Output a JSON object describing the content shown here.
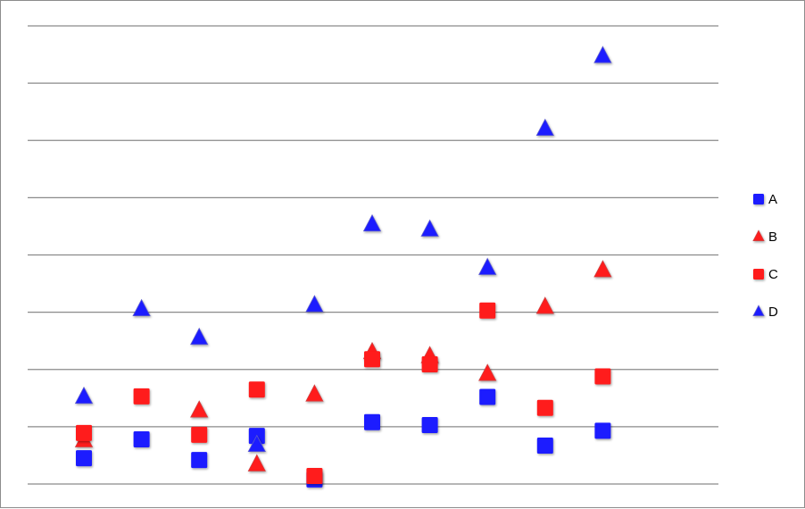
{
  "chart_data": {
    "type": "scatter",
    "title": "",
    "xlabel": "",
    "ylabel": "",
    "x": [
      1,
      2,
      3,
      4,
      5,
      6,
      7,
      8,
      9,
      10
    ],
    "ylim": [
      0,
      8
    ],
    "grid": true,
    "legend_position": "right",
    "series": [
      {
        "name": "A",
        "marker": "square",
        "color": "#1a1aff",
        "values": [
          0.45,
          0.78,
          0.42,
          0.84,
          0.08,
          1.08,
          1.03,
          1.52,
          0.67,
          0.93
        ]
      },
      {
        "name": "B",
        "marker": "triangle",
        "color": "#ff1a1a",
        "values": [
          0.76,
          null,
          1.28,
          0.34,
          1.56,
          2.3,
          2.23,
          1.92,
          3.09,
          3.73
        ]
      },
      {
        "name": "C",
        "marker": "square",
        "color": "#ff1a1a",
        "values": [
          0.89,
          1.53,
          0.86,
          1.65,
          0.14,
          2.18,
          2.09,
          3.03,
          1.33,
          1.88
        ]
      },
      {
        "name": "D",
        "marker": "triangle",
        "color": "#1a1aff",
        "values": [
          1.52,
          3.05,
          2.55,
          0.68,
          3.12,
          4.53,
          4.44,
          3.77,
          6.2,
          7.47
        ]
      }
    ]
  }
}
